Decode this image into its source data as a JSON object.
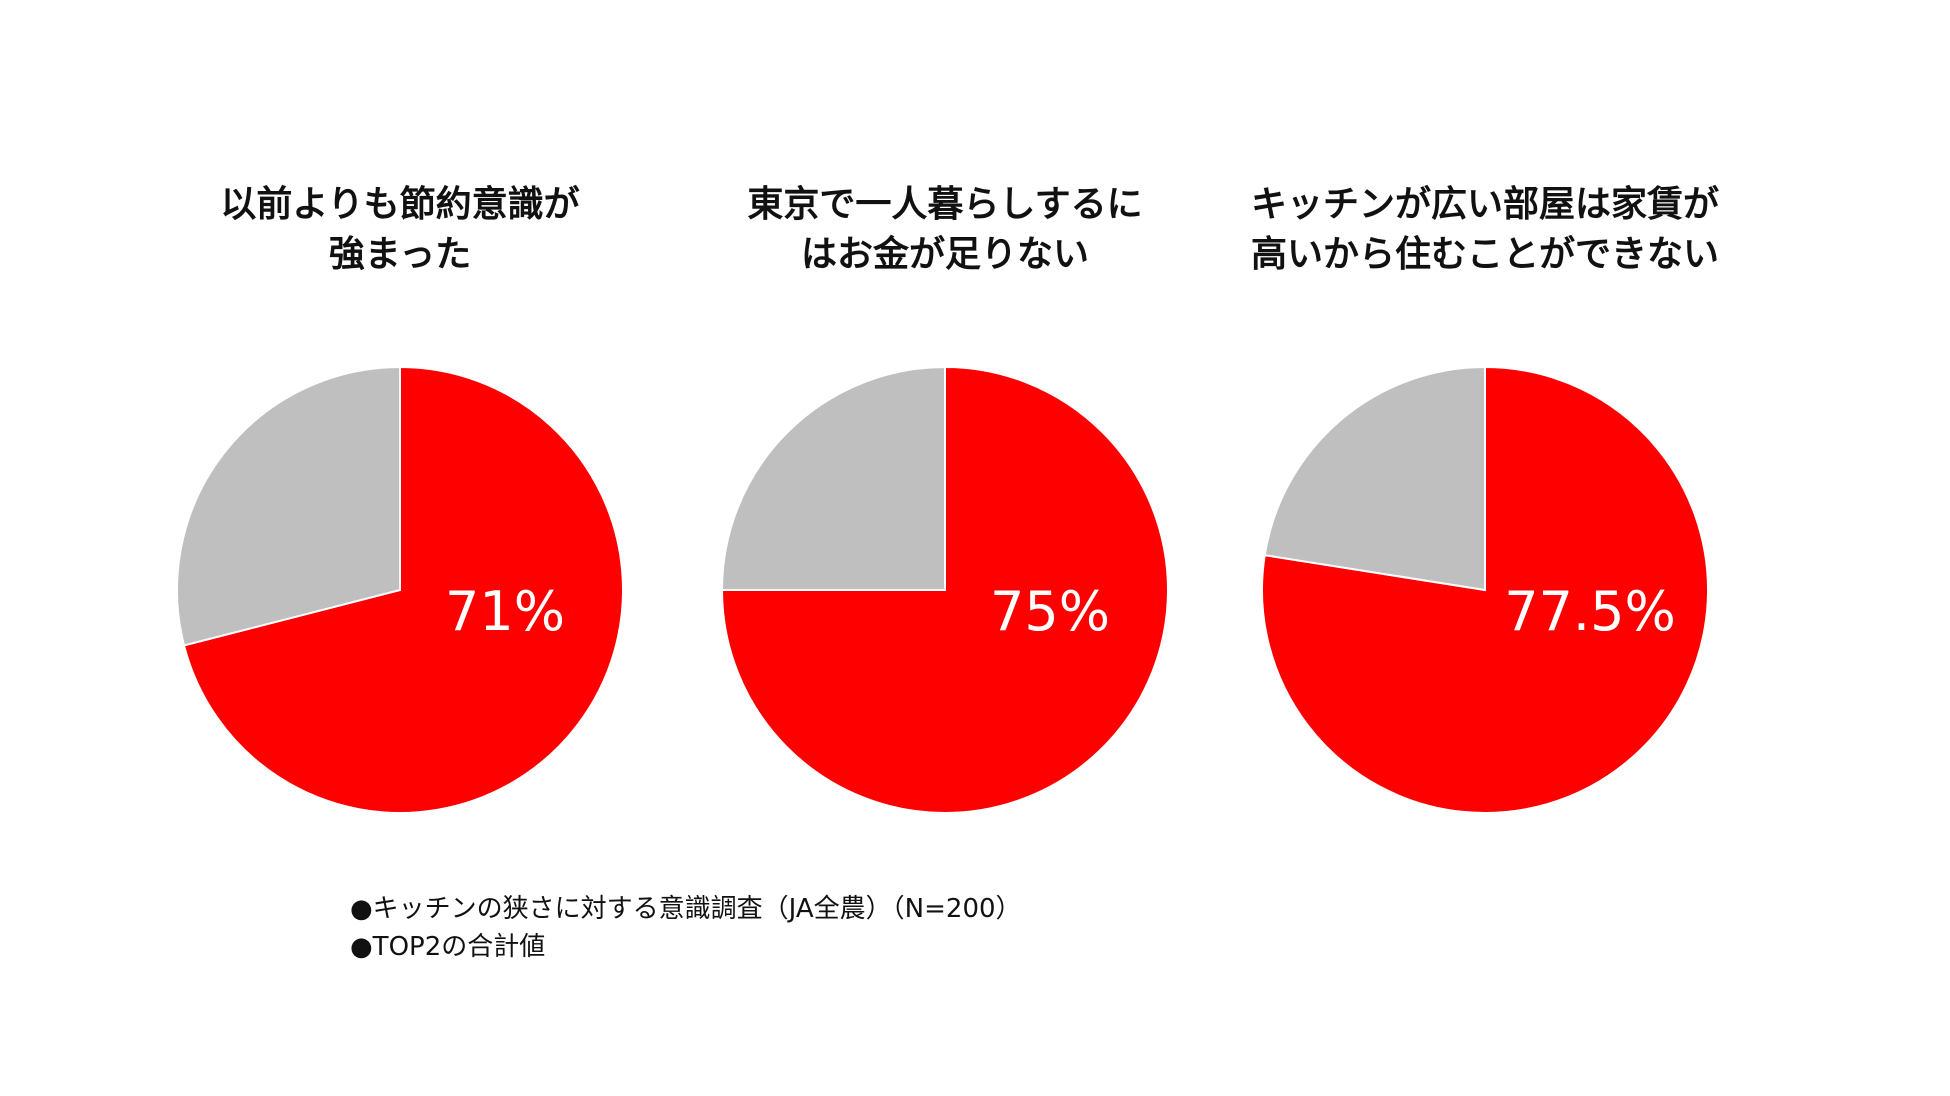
{
  "chart_data": [
    {
      "type": "pie",
      "title_lines": [
        "以前よりも節約意識が",
        "強まった"
      ],
      "values": [
        71,
        29
      ],
      "value_label": "71%",
      "colors": [
        "#ff0000",
        "#bfbfbf"
      ]
    },
    {
      "type": "pie",
      "title_lines": [
        "東京で一人暮らしするに",
        "はお金が足りない"
      ],
      "values": [
        75,
        25
      ],
      "value_label": "75%",
      "colors": [
        "#ff0000",
        "#bfbfbf"
      ]
    },
    {
      "type": "pie",
      "title_lines": [
        "キッチンが広い部屋は家賃が",
        "高いから住むことができない"
      ],
      "values": [
        77.5,
        22.5
      ],
      "value_label": "77.5%",
      "colors": [
        "#ff0000",
        "#bfbfbf"
      ]
    }
  ],
  "notes": [
    "●キッチンの狭さに対する意識調査（JA全農）（N=200）",
    "●TOP2の合計値"
  ]
}
